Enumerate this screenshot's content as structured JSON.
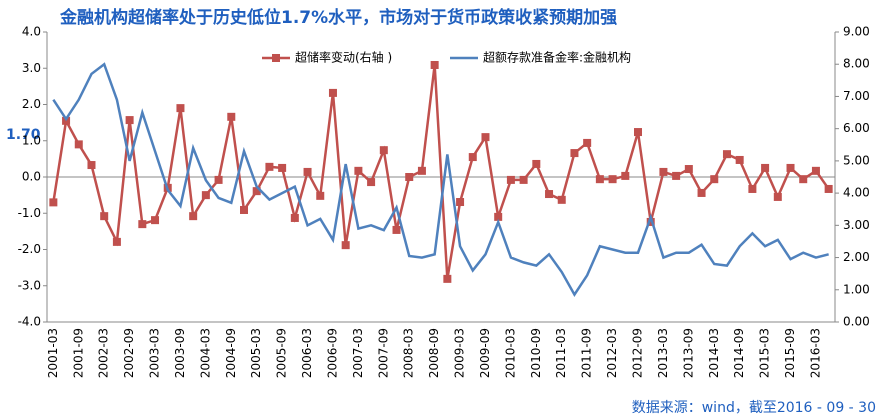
{
  "chart_data": {
    "type": "line",
    "title": "金融机构超储率处于历史低位1.7%水平，市场对于货币政策收紧预期加强",
    "annotation": "1.70",
    "source": "数据来源：wind，截至2016 - 09 - 30",
    "categories": [
      "2001-03",
      null,
      "2001-09",
      null,
      "2002-03",
      null,
      "2002-09",
      null,
      "2003-03",
      null,
      "2003-09",
      null,
      "2004-03",
      null,
      "2004-09",
      null,
      "2005-03",
      null,
      "2005-09",
      null,
      "2006-03",
      null,
      "2006-09",
      null,
      "2007-03",
      null,
      "2007-09",
      null,
      "2008-03",
      null,
      "2008-09",
      null,
      "2009-03",
      null,
      "2009-09",
      null,
      "2010-03",
      null,
      "2010-09",
      null,
      "2011-03",
      null,
      "2011-09",
      null,
      "2012-03",
      null,
      "2012-09",
      null,
      "2013-03",
      null,
      "2013-09",
      null,
      "2014-03",
      null,
      "2014-09",
      null,
      "2015-03",
      null,
      "2015-09",
      null,
      "2016-03",
      null
    ],
    "series": [
      {
        "name": "超储率变动(右轴 )",
        "color": "#c0504d",
        "marker": "square",
        "values": [
          -0.7,
          1.55,
          0.9,
          0.33,
          -1.08,
          -1.79,
          1.57,
          -1.3,
          -1.19,
          -0.3,
          1.9,
          -1.08,
          -0.5,
          -0.08,
          1.66,
          -0.91,
          -0.39,
          0.28,
          0.25,
          -1.13,
          0.14,
          -0.52,
          2.32,
          -1.88,
          0.17,
          -0.14,
          0.74,
          -1.46,
          0,
          0.17,
          3.09,
          -2.81,
          -0.69,
          0.55,
          1.1,
          -1.1,
          -0.08,
          -0.08,
          0.36,
          -0.47,
          -0.63,
          0.66,
          0.94,
          -0.06,
          -0.06,
          0.03,
          1.24,
          -1.24,
          0.14,
          0.03,
          0.22,
          -0.44,
          -0.06,
          0.63,
          0.47,
          -0.33,
          0.25,
          -0.55,
          0.25,
          -0.06,
          0.17,
          -0.33
        ]
      },
      {
        "name": "超额存款准备金率:金融机构",
        "color": "#4f81bd",
        "axis": "y2",
        "values": [
          6.9,
          6.3,
          6.9,
          7.7,
          8.0,
          6.9,
          5.0,
          6.5,
          5.3,
          4.1,
          3.6,
          5.4,
          4.4,
          3.85,
          3.7,
          5.3,
          4.2,
          3.8,
          4.0,
          4.2,
          3.0,
          3.2,
          2.55,
          4.9,
          2.9,
          3.0,
          2.85,
          3.55,
          2.05,
          2.0,
          2.1,
          5.2,
          2.35,
          1.6,
          2.1,
          3.1,
          2.0,
          1.85,
          1.75,
          2.1,
          1.55,
          0.85,
          1.45,
          2.35,
          2.25,
          2.15,
          2.15,
          3.25,
          2.0,
          2.15,
          2.15,
          2.4,
          1.8,
          1.75,
          2.35,
          2.75,
          2.35,
          2.55,
          1.95,
          2.15,
          2.0,
          2.1
        ]
      }
    ],
    "ylim": [
      -4,
      4
    ],
    "yticks": [
      {
        "value": -4,
        "label": "-4.0"
      },
      {
        "value": -3,
        "label": "-3.0"
      },
      {
        "value": -2,
        "label": "-2.0"
      },
      {
        "value": -1,
        "label": "-1.0"
      },
      {
        "value": 0,
        "label": "0.0"
      },
      {
        "value": 1,
        "label": "1.0"
      },
      {
        "value": 2,
        "label": "2.0"
      },
      {
        "value": 3,
        "label": "3.0"
      },
      {
        "value": 4,
        "label": "4.0"
      }
    ],
    "y2lim": [
      0,
      9
    ],
    "y2ticks": [
      {
        "value": 0,
        "label": "0.00"
      },
      {
        "value": 1,
        "label": "1.00"
      },
      {
        "value": 2,
        "label": "2.00"
      },
      {
        "value": 3,
        "label": "3.00"
      },
      {
        "value": 4,
        "label": "4.00"
      },
      {
        "value": 5,
        "label": "5.00"
      },
      {
        "value": 6,
        "label": "6.00"
      },
      {
        "value": 7,
        "label": "7.00"
      },
      {
        "value": 8,
        "label": "8.00"
      },
      {
        "value": 9,
        "label": "9.00"
      }
    ],
    "grid": false
  }
}
